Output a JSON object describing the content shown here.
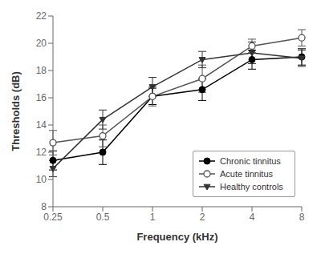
{
  "chart_data": {
    "type": "line",
    "xlabel": "Frequency (kHz)",
    "ylabel": "Thresholds (dB)",
    "categories": [
      "0.25",
      "0.5",
      "1",
      "2",
      "4",
      "8"
    ],
    "series": [
      {
        "name": "Chronic tinnitus",
        "color": "#000000",
        "marker": "circle",
        "values": [
          11.4,
          12.0,
          16.1,
          16.6,
          18.8,
          19.0
        ],
        "errors": [
          0.7,
          0.9,
          0.6,
          0.8,
          0.7,
          0.6
        ]
      },
      {
        "name": "Acute tinnitus",
        "color": "#555555",
        "marker": "open_circle",
        "values": [
          12.7,
          13.2,
          16.1,
          17.4,
          19.8,
          20.4
        ],
        "errors": [
          0.9,
          0.8,
          0.7,
          1.0,
          0.5,
          0.6
        ]
      },
      {
        "name": "Healthy controls",
        "color": "#333333",
        "marker": "triangle_down",
        "values": [
          10.8,
          14.4,
          16.8,
          18.8,
          19.3,
          18.9
        ],
        "errors": [
          0.6,
          0.7,
          0.7,
          0.6,
          0.8,
          0.6
        ]
      }
    ],
    "ylim": [
      8,
      22
    ],
    "yticks": [
      8,
      10,
      12,
      14,
      16,
      18,
      20,
      22
    ],
    "grid": false,
    "legend": "lower right"
  }
}
